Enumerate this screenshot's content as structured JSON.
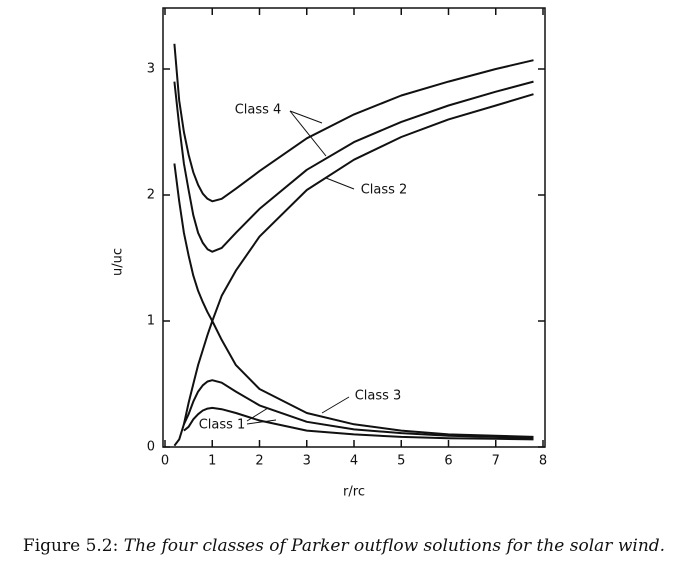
{
  "chart_data": {
    "type": "line",
    "xlabel": "r/rc",
    "ylabel": "u/uc",
    "x": [
      0.2,
      0.3,
      0.4,
      0.5,
      0.6,
      0.7,
      0.8,
      0.9,
      1,
      1.2,
      1.5,
      2,
      3,
      4,
      5,
      6,
      7,
      7.8
    ],
    "series": [
      {
        "color": "#111111",
        "values": [
          3.2,
          2.75,
          2.5,
          2.32,
          2.18,
          2.08,
          2.01,
          1.97,
          1.95,
          1.97,
          2.05,
          2.19,
          2.45,
          2.64,
          2.79,
          2.9,
          3.0,
          3.07
        ]
      },
      {
        "color": "#111111",
        "values": [
          2.9,
          2.55,
          2.25,
          2.04,
          1.84,
          1.7,
          1.62,
          1.57,
          1.55,
          1.58,
          1.7,
          1.89,
          2.2,
          2.42,
          2.58,
          2.71,
          2.82,
          2.9
        ]
      },
      {
        "color": "#111111",
        "values": [
          0.01,
          0.06,
          0.18,
          0.35,
          0.5,
          0.65,
          0.77,
          0.89,
          1,
          1.2,
          1.4,
          1.67,
          2.04,
          2.28,
          2.46,
          2.6,
          2.71,
          2.8
        ]
      },
      {
        "color": "#111111",
        "values": [
          2.25,
          1.95,
          1.7,
          1.52,
          1.36,
          1.24,
          1.15,
          1.07,
          1,
          0.85,
          0.65,
          0.46,
          0.27,
          0.18,
          0.13,
          0.1,
          0.09,
          0.08
        ]
      },
      {
        "color": "#111111",
        "values": [
          null,
          null,
          0.18,
          0.26,
          0.36,
          0.44,
          0.49,
          0.52,
          0.53,
          0.51,
          0.44,
          0.33,
          0.2,
          0.14,
          0.11,
          0.09,
          0.08,
          0.07
        ]
      },
      {
        "color": "#111111",
        "values": [
          null,
          null,
          0.13,
          0.16,
          0.22,
          0.26,
          0.29,
          0.305,
          0.31,
          0.3,
          0.27,
          0.21,
          0.13,
          0.1,
          0.08,
          0.07,
          0.065,
          0.06
        ]
      }
    ],
    "annotations": [
      "Class 4",
      "Class 2",
      "Class 3",
      "Class 1"
    ],
    "xlim": [
      0,
      8
    ],
    "ylim": [
      0,
      3.5
    ],
    "xticks": [
      0,
      1,
      2,
      3,
      4,
      5,
      6,
      7,
      8
    ],
    "yticks": [
      0,
      1,
      2,
      3
    ],
    "grid": false,
    "caption_label": "Figure 5.2:",
    "caption": "The four classes of Parker outflow solutions for the solar wind."
  }
}
